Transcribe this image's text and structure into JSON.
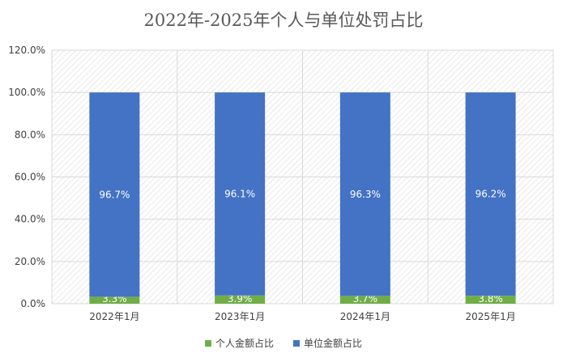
{
  "chart_data": {
    "type": "bar",
    "stacked": true,
    "title": "2022年-2025年个人与单位处罚占比",
    "categories": [
      "2022年1月",
      "2023年1月",
      "2024年1月",
      "2025年1月"
    ],
    "series": [
      {
        "name": "个人金额占比",
        "values": [
          3.3,
          3.9,
          3.7,
          3.8
        ],
        "labels": [
          "3.3%",
          "3.9%",
          "3.7%",
          "3.8%"
        ],
        "color": "#70AD47"
      },
      {
        "name": "单位金额占比",
        "values": [
          96.7,
          96.1,
          96.3,
          96.2
        ],
        "labels": [
          "96.7%",
          "96.1%",
          "96.3%",
          "96.2%"
        ],
        "color": "#4472C4"
      }
    ],
    "ylim": [
      0,
      120
    ],
    "yticks": [
      "0.0%",
      "20.0%",
      "40.0%",
      "60.0%",
      "80.0%",
      "100.0%",
      "120.0%"
    ],
    "ytick_values": [
      0,
      20,
      40,
      60,
      80,
      100,
      120
    ],
    "grid": true,
    "legend_position": "bottom",
    "plot_background": "hatched-light-gray"
  }
}
